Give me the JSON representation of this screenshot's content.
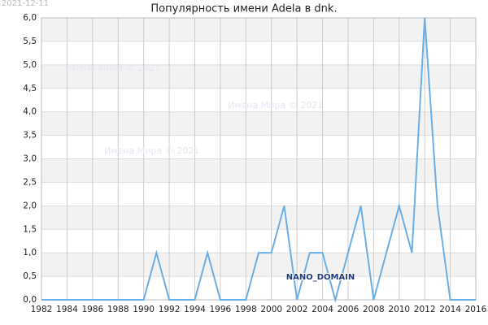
{
  "chart_data": {
    "type": "line",
    "title": "Популярность имени Adela в dnk.",
    "date_stamp": "2021-12-11",
    "watermarks": [
      "Имена Мира © 2021",
      "Имена Мира © 2021",
      "Имена Мира © 2021"
    ],
    "badge": "NANO_DOMAIN",
    "x": [
      1982,
      1983,
      1984,
      1985,
      1986,
      1987,
      1988,
      1989,
      1990,
      1991,
      1992,
      1993,
      1994,
      1995,
      1996,
      1997,
      1998,
      1999,
      2000,
      2001,
      2002,
      2003,
      2004,
      2005,
      2006,
      2007,
      2008,
      2009,
      2010,
      2011,
      2012,
      2013,
      2014,
      2015,
      2016
    ],
    "series": [
      {
        "color": "#6aaee8",
        "values": [
          0,
          0,
          0,
          0,
          0,
          0,
          0,
          0,
          0,
          1,
          0,
          0,
          0,
          1,
          0,
          0,
          0,
          1,
          1,
          2,
          0,
          1,
          1,
          0,
          1,
          2,
          0,
          1,
          2,
          1,
          6,
          2,
          0,
          0,
          0
        ]
      }
    ],
    "xlim": [
      1982,
      2016
    ],
    "xticks": [
      1982,
      1984,
      1986,
      1988,
      1990,
      1992,
      1994,
      1996,
      1998,
      2000,
      2002,
      2004,
      2006,
      2008,
      2010,
      2012,
      2014,
      2016
    ],
    "ylim": [
      0,
      6
    ],
    "yticks": [
      {
        "value": 0,
        "label": "0,0"
      },
      {
        "value": 0.5,
        "label": "0,5"
      },
      {
        "value": 1,
        "label": "1,0"
      },
      {
        "value": 1.5,
        "label": "1,5"
      },
      {
        "value": 2,
        "label": "2,0"
      },
      {
        "value": 2.5,
        "label": "2,5"
      },
      {
        "value": 3,
        "label": "3,0"
      },
      {
        "value": 3.5,
        "label": "3,5"
      },
      {
        "value": 4,
        "label": "4,0"
      },
      {
        "value": 4.5,
        "label": "4,5"
      },
      {
        "value": 5,
        "label": "5,0"
      },
      {
        "value": 5.5,
        "label": "5,5"
      },
      {
        "value": 6,
        "label": "6,0"
      }
    ],
    "grid": true
  }
}
